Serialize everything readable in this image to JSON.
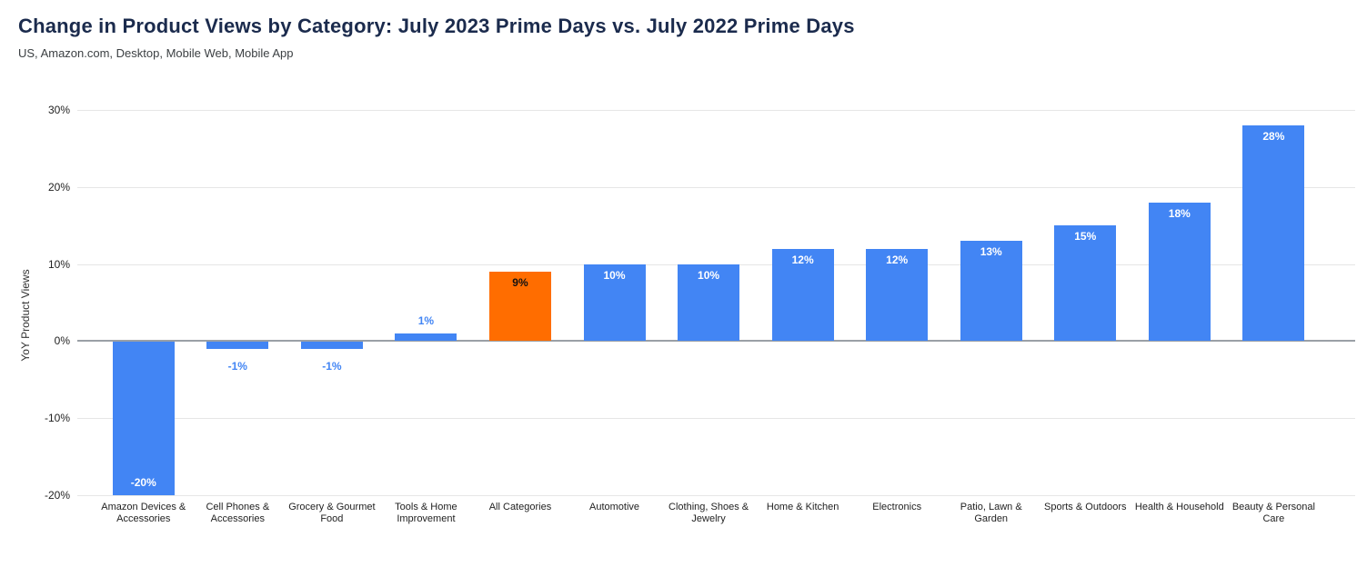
{
  "header": {
    "title": "Change in Product Views by Category: July 2023 Prime Days vs. July 2022 Prime Days",
    "subtitle": "US, Amazon.com, Desktop, Mobile Web, Mobile App"
  },
  "chart_data": {
    "type": "bar",
    "title": "Change in Product Views by Category: July 2023 Prime Days vs. July 2022 Prime Days",
    "subtitle": "US, Amazon.com, Desktop, Mobile Web, Mobile App",
    "ylabel": "YoY Product Views",
    "xlabel": "",
    "ylim": [
      -20,
      30
    ],
    "yticks": [
      30,
      20,
      10,
      0,
      -10,
      -20
    ],
    "ytick_labels": [
      "30%",
      "20%",
      "10%",
      "0%",
      "-10%",
      "-20%"
    ],
    "grid": true,
    "legend": "none",
    "categories": [
      "Amazon Devices &\nAccessories",
      "Cell Phones &\nAccessories",
      "Grocery & Gourmet\nFood",
      "Tools & Home\nImprovement",
      "All Categories",
      "Automotive",
      "Clothing, Shoes &\nJewelry",
      "Home & Kitchen",
      "Electronics",
      "Patio, Lawn &\nGarden",
      "Sports & Outdoors",
      "Health & Household",
      "Beauty & Personal\nCare"
    ],
    "values": [
      -20,
      -1,
      -1,
      1,
      9,
      10,
      10,
      12,
      12,
      13,
      15,
      18,
      28
    ],
    "value_labels": [
      "-20%",
      "-1%",
      "-1%",
      "1%",
      "9%",
      "10%",
      "10%",
      "12%",
      "12%",
      "13%",
      "15%",
      "18%",
      "28%"
    ],
    "highlighted_index": 4,
    "colors": {
      "bar": "#4285f4",
      "highlight": "#ff6d00",
      "annotation_outside": "#4285f4",
      "annotation_inside": "#ffffff",
      "annotation_on_highlight": "#111111",
      "gridline": "#e6e6e6",
      "zero_line": "#9aa0a6",
      "title": "#1b2b4d",
      "subtitle": "#3c4043"
    }
  }
}
